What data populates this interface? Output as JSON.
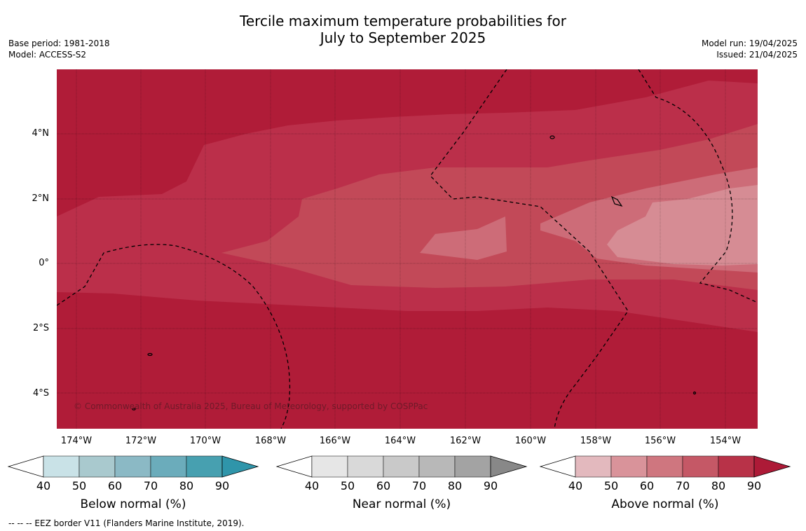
{
  "title_line1": "Tercile maximum temperature probabilities for",
  "title_line2": "July to September 2025",
  "meta_left": [
    "Base period: 1981-2018",
    "Model: ACCESS-S2"
  ],
  "meta_right": [
    "Model run: 19/04/2025",
    "Issued: 21/04/2025"
  ],
  "map": {
    "lat_labels": [
      "4°N",
      "2°N",
      "0°",
      "2°S",
      "4°S"
    ],
    "lon_labels": [
      "174°W",
      "172°W",
      "170°W",
      "168°W",
      "166°W",
      "164°W",
      "162°W",
      "160°W",
      "158°W",
      "156°W",
      "154°W"
    ],
    "copyright": "© Commonwealth of Australia 2025, Bureau of Meteorology, supported by COSPPac",
    "colors": {
      "above_90": "#b01c38",
      "above_80": "#bb2f4a",
      "above_70": "#c24958",
      "above_60": "#cd6c78",
      "above_50": "#d68c94",
      "border": "#000000"
    }
  },
  "colorbars": [
    {
      "title": "Below normal (%)",
      "ticks": [
        "40",
        "50",
        "60",
        "70",
        "80",
        "90"
      ],
      "colors": [
        "#ffffff",
        "#c9e2e7",
        "#a9c9ce",
        "#8bb9c5",
        "#6bacbb",
        "#47a0b0",
        "#2f95aa"
      ]
    },
    {
      "title": "Near normal (%)",
      "ticks": [
        "40",
        "50",
        "60",
        "70",
        "80",
        "90"
      ],
      "colors": [
        "#ffffff",
        "#e6e6e6",
        "#d9d9d9",
        "#c9c9c9",
        "#b8b8b8",
        "#a3a3a3",
        "#888888"
      ]
    },
    {
      "title": "Above normal (%)",
      "ticks": [
        "40",
        "50",
        "60",
        "70",
        "80",
        "90"
      ],
      "colors": [
        "#ffffff",
        "#e3b9be",
        "#d9939a",
        "#cf767f",
        "#c55866",
        "#b83248",
        "#ad1a37"
      ]
    }
  ],
  "footnote": "--  --  -- EEZ border V11 (Flanders Marine Institute, 2019)."
}
